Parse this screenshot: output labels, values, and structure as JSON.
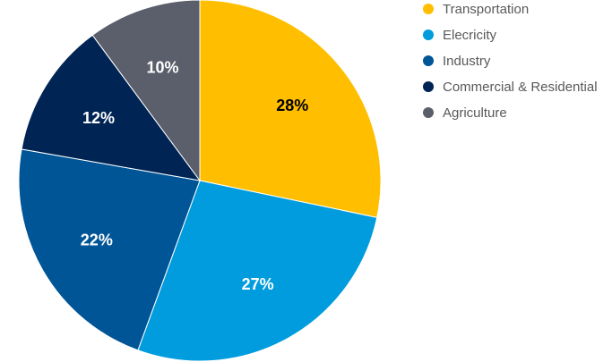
{
  "chart_data": {
    "type": "pie",
    "title": "",
    "start_angle_deg": 0,
    "direction": "clockwise",
    "legend_position": "right",
    "slices": [
      {
        "name": "Transportation",
        "value": 28,
        "label": "28%",
        "color": "#FFBF00",
        "label_color": "#000000"
      },
      {
        "name": "Elecricity",
        "value": 27,
        "label": "27%",
        "color": "#009CDE",
        "label_color": "#ffffff"
      },
      {
        "name": "Industry",
        "value": 22,
        "label": "22%",
        "color": "#005596",
        "label_color": "#ffffff"
      },
      {
        "name": "Commercial & Residential",
        "value": 12,
        "label": "12%",
        "color": "#002554",
        "label_color": "#ffffff"
      },
      {
        "name": "Agriculture",
        "value": 10,
        "label": "10%",
        "color": "#5B5F6B",
        "label_color": "#ffffff"
      }
    ]
  }
}
